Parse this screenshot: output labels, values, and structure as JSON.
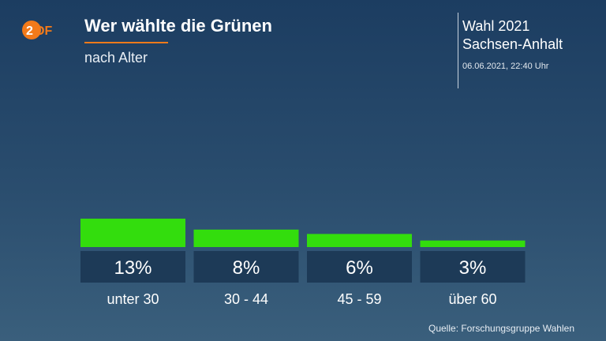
{
  "header": {
    "logo_text": "ZDF",
    "title": "Wer wählte die Grünen",
    "subtitle": "nach Alter",
    "election_line1": "Wahl 2021",
    "election_line2": "Sachsen-Anhalt",
    "timestamp": "06.06.2021, 22:40 Uhr"
  },
  "footer": {
    "source": "Quelle: Forschungsgruppe Wahlen"
  },
  "colors": {
    "bar": "#33dd0d",
    "value_box": "#1d3a57",
    "accent": "#f27a1a"
  },
  "chart_data": {
    "type": "bar",
    "categories": [
      "unter 30",
      "30 - 44",
      "45 - 59",
      "über 60"
    ],
    "values": [
      13,
      8,
      6,
      3
    ],
    "value_labels": [
      "13%",
      "8%",
      "6%",
      "3%"
    ],
    "ylim": [
      0,
      100
    ]
  }
}
